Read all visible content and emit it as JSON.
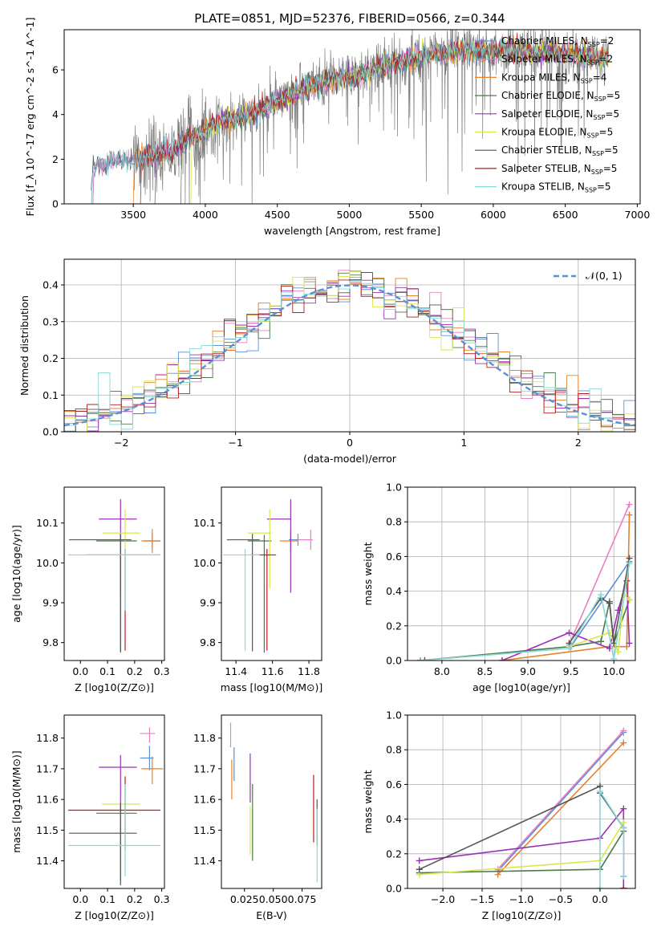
{
  "figure_title": "PLATE=0851, MJD=52376, FIBERID=0566, z=0.344",
  "colors": {
    "chabrier_miles": "#5b8fd6",
    "salpeter_miles": "#e87fc0",
    "kroupa_miles": "#e8822a",
    "chabrier_elodie": "#4a7a4a",
    "salpeter_elodie": "#9b30b8",
    "kroupa_elodie": "#d8e84a",
    "chabrier_stelib": "#555555",
    "salpeter_stelib": "#b81c1c",
    "kroupa_stelib": "#88d8d8",
    "normal_curve": "#5b8fd6",
    "data_spectrum": "#808080"
  },
  "chart_data": [
    {
      "id": "spectrum",
      "type": "line",
      "title": "PLATE=0851, MJD=52376, FIBERID=0566, z=0.344",
      "xlabel": "wavelength [Angstrom, rest frame]",
      "ylabel": "Flux [f_λ 10^-17 erg cm^-2 s^-1 A^-1]",
      "xlim": [
        3020,
        7020
      ],
      "ylim": [
        0,
        7.8
      ],
      "xticks": [
        "3500",
        "4000",
        "4500",
        "5000",
        "5500",
        "6000",
        "6500",
        "7000"
      ],
      "yticks": [
        "0",
        "2",
        "4",
        "6"
      ],
      "legend_position": "right",
      "legend": [
        {
          "label": "Chabrier MILES, N",
          "sub": "SSP",
          "suffix": "=2",
          "color_key": "chabrier_miles"
        },
        {
          "label": "Salpeter MILES, N",
          "sub": "SSP",
          "suffix": "=2",
          "color_key": "salpeter_miles"
        },
        {
          "label": "Kroupa MILES, N",
          "sub": "SSP",
          "suffix": "=4",
          "color_key": "kroupa_miles"
        },
        {
          "label": "Chabrier ELODIE, N",
          "sub": "SSP",
          "suffix": "=5",
          "color_key": "chabrier_elodie"
        },
        {
          "label": "Salpeter ELODIE, N",
          "sub": "SSP",
          "suffix": "=5",
          "color_key": "salpeter_elodie"
        },
        {
          "label": "Kroupa ELODIE, N",
          "sub": "SSP",
          "suffix": "=5",
          "color_key": "kroupa_elodie"
        },
        {
          "label": "Chabrier STELIB, N",
          "sub": "SSP",
          "suffix": "=5",
          "color_key": "chabrier_stelib"
        },
        {
          "label": "Salpeter STELIB, N",
          "sub": "SSP",
          "suffix": "=5",
          "color_key": "salpeter_stelib"
        },
        {
          "label": "Kroupa STELIB, N",
          "sub": "SSP",
          "suffix": "=5",
          "color_key": "kroupa_stelib"
        }
      ],
      "continuum": {
        "x": [
          3200,
          3220,
          3500,
          3700,
          3800,
          3950,
          4100,
          4300,
          4500,
          4700,
          4900,
          5100,
          5300,
          5500,
          5700,
          5900,
          6100,
          6300,
          6500,
          6700,
          6800
        ],
        "y": [
          0,
          1.7,
          2.0,
          2.3,
          2.6,
          3.1,
          3.7,
          4.0,
          4.6,
          5.2,
          5.6,
          5.8,
          6.3,
          6.6,
          6.8,
          6.9,
          6.9,
          6.8,
          6.7,
          6.6,
          6.5
        ]
      },
      "model_start_x": [
        3220,
        3220,
        3500,
        3830,
        3650,
        3900,
        3210,
        3550,
        3210
      ]
    },
    {
      "id": "residual_hist",
      "type": "histogram",
      "xlabel": "(data-model)/error",
      "ylabel": "Normed distribution",
      "xlim": [
        -2.5,
        2.5
      ],
      "ylim": [
        0,
        0.47
      ],
      "xticks": [
        "−2",
        "−1",
        "0",
        "1",
        "2"
      ],
      "yticks": [
        "0.0",
        "0.1",
        "0.2",
        "0.3",
        "0.4"
      ],
      "grid": true,
      "bin_width": 0.1,
      "reference_label": "𝒩(0, 1)",
      "legend_position": "top-right"
    },
    {
      "id": "age_vs_Z",
      "type": "errorbar",
      "xlabel": "Z [log10(Z/Z⊙)]",
      "ylabel": "age [log10(age/yr)]",
      "xlim": [
        -0.06,
        0.31
      ],
      "ylim": [
        9.755,
        10.19
      ],
      "xticks": [
        "0.0",
        "0.1",
        "0.2",
        "0.3"
      ],
      "yticks": [
        "9.8",
        "9.9",
        "10.0",
        "10.1"
      ],
      "points": [
        {
          "color_key": "chabrier_miles",
          "x": 0.265,
          "xerr": [
            0.03,
            0.03
          ],
          "y": 10.055,
          "yerr": [
            0.015,
            0.015
          ]
        },
        {
          "color_key": "salpeter_miles",
          "x": 0.265,
          "xerr": [
            0.025,
            0.025
          ],
          "y": 10.055,
          "yerr": [
            0.02,
            0.02
          ]
        },
        {
          "color_key": "kroupa_miles",
          "x": 0.265,
          "xerr": [
            0.04,
            0.03
          ],
          "y": 10.055,
          "yerr": [
            0.03,
            0.03
          ]
        },
        {
          "color_key": "chabrier_elodie",
          "x": 0.148,
          "xerr": [
            0.09,
            0.06
          ],
          "y": 10.055,
          "yerr": [
            0.28,
            0.015
          ]
        },
        {
          "color_key": "salpeter_elodie",
          "x": 0.148,
          "xerr": [
            0.08,
            0.06
          ],
          "y": 10.11,
          "yerr": [
            0.185,
            0.05
          ]
        },
        {
          "color_key": "kroupa_elodie",
          "x": 0.165,
          "xerr": [
            0.085,
            0.055
          ],
          "y": 10.075,
          "yerr": [
            0.15,
            0.06
          ]
        },
        {
          "color_key": "chabrier_stelib",
          "x": 0.148,
          "xerr": [
            0.19,
            0.04
          ],
          "y": 10.058,
          "yerr": [
            0.28,
            0.015
          ]
        },
        {
          "color_key": "salpeter_stelib",
          "x": 0.165,
          "xerr": [
            0.14,
            0.13
          ],
          "y": 10.02,
          "yerr": [
            0.24,
            0.015
          ]
        },
        {
          "color_key": "kroupa_stelib",
          "x": 0.165,
          "xerr": [
            0.21,
            0.13
          ],
          "y": 10.02,
          "yerr": [
            0.14,
            0.015
          ]
        }
      ]
    },
    {
      "id": "age_vs_mass",
      "type": "errorbar",
      "xlabel": "mass [log10(M/M⊙)]",
      "ylabel": "",
      "xlim": [
        11.32,
        11.87
      ],
      "ylim": [
        9.755,
        10.19
      ],
      "xticks": [
        "11.4",
        "11.6",
        "11.8"
      ],
      "yticks": [
        "9.8",
        "9.9",
        "10.0",
        "10.1"
      ],
      "points": [
        {
          "color_key": "chabrier_miles",
          "x": 11.74,
          "xerr": [
            0.05,
            0.02
          ],
          "y": 10.058,
          "yerr": [
            0.015,
            0.015
          ]
        },
        {
          "color_key": "salpeter_miles",
          "x": 11.81,
          "xerr": [
            0.07,
            0.01
          ],
          "y": 10.058,
          "yerr": [
            0.025,
            0.025
          ]
        },
        {
          "color_key": "kroupa_miles",
          "x": 11.7,
          "xerr": [
            0.06,
            0.04
          ],
          "y": 10.055,
          "yerr": [
            0.025,
            0.025
          ]
        },
        {
          "color_key": "chabrier_elodie",
          "x": 11.555,
          "xerr": [
            0.09,
            0.04
          ],
          "y": 10.055,
          "yerr": [
            0.28,
            0.015
          ]
        },
        {
          "color_key": "salpeter_elodie",
          "x": 11.7,
          "xerr": [
            0.13,
            0.0
          ],
          "y": 10.11,
          "yerr": [
            0.185,
            0.05
          ]
        },
        {
          "color_key": "kroupa_elodie",
          "x": 11.585,
          "xerr": [
            0.12,
            0.01
          ],
          "y": 10.075,
          "yerr": [
            0.14,
            0.06
          ]
        },
        {
          "color_key": "chabrier_stelib",
          "x": 11.49,
          "xerr": [
            0.14,
            0.04
          ],
          "y": 10.058,
          "yerr": [
            0.28,
            0.015
          ]
        },
        {
          "color_key": "salpeter_stelib",
          "x": 11.57,
          "xerr": [
            0.09,
            0.05
          ],
          "y": 10.02,
          "yerr": [
            0.24,
            0.015
          ]
        },
        {
          "color_key": "kroupa_stelib",
          "x": 11.45,
          "xerr": [
            0.12,
            0.08
          ],
          "y": 10.02,
          "yerr": [
            0.24,
            0.015
          ]
        }
      ]
    },
    {
      "id": "weight_vs_age",
      "type": "line",
      "xlabel": "age [log10(age/yr)]",
      "ylabel": "mass weight",
      "xlim": [
        7.6,
        10.25
      ],
      "ylim": [
        0,
        1.0
      ],
      "xticks": [
        "8.0",
        "8.5",
        "9.0",
        "9.5",
        "10.0"
      ],
      "yticks": [
        "0.0",
        "0.2",
        "0.4",
        "0.6",
        "0.8",
        "1.0"
      ],
      "grid": true,
      "series": [
        {
          "color_key": "chabrier_miles",
          "x": [
            9.5,
            10.18
          ],
          "y": [
            0.08,
            0.57
          ]
        },
        {
          "color_key": "salpeter_miles",
          "x": [
            9.48,
            10.18
          ],
          "y": [
            0.09,
            0.9
          ]
        },
        {
          "color_key": "kroupa_miles",
          "x": [
            8.7,
            9.95,
            10.15,
            10.18
          ],
          "y": [
            0.0,
            0.08,
            0.08,
            0.84
          ]
        },
        {
          "color_key": "chabrier_elodie",
          "x": [
            7.75,
            9.48,
            9.85,
            9.95,
            10.0,
            10.18
          ],
          "y": [
            0.0,
            0.08,
            0.11,
            0.34,
            0.1,
            0.35
          ]
        },
        {
          "color_key": "salpeter_elodie",
          "x": [
            8.7,
            9.48,
            9.95,
            10.05,
            10.15,
            10.18
          ],
          "y": [
            0.0,
            0.16,
            0.07,
            0.29,
            0.46,
            0.1
          ]
        },
        {
          "color_key": "kroupa_elodie",
          "x": [
            9.48,
            9.95,
            10.05,
            10.12,
            10.18
          ],
          "y": [
            0.08,
            0.16,
            0.05,
            0.38,
            0.35
          ]
        },
        {
          "color_key": "chabrier_stelib",
          "x": [
            9.48,
            9.85,
            9.95,
            10.0,
            10.18
          ],
          "y": [
            0.1,
            0.36,
            0.33,
            0.1,
            0.59
          ]
        },
        {
          "color_key": "salpeter_stelib",
          "x": [
            7.75,
            7.8
          ],
          "y": [
            0.0,
            0.0
          ]
        },
        {
          "color_key": "kroupa_stelib",
          "x": [
            7.75,
            9.48,
            9.85,
            10.0,
            10.18
          ],
          "y": [
            0.0,
            0.07,
            0.38,
            0.01,
            0.56
          ]
        }
      ]
    },
    {
      "id": "mass_vs_Z",
      "type": "errorbar",
      "xlabel": "Z [log10(Z/Z⊙)]",
      "ylabel": "mass [log10(M/M⊙)]",
      "xlim": [
        -0.06,
        0.31
      ],
      "ylim": [
        11.31,
        11.875
      ],
      "xticks": [
        "0.0",
        "0.1",
        "0.2",
        "0.3"
      ],
      "yticks": [
        "11.4",
        "11.5",
        "11.6",
        "11.7",
        "11.8"
      ],
      "points": [
        {
          "color_key": "chabrier_miles",
          "x": 0.255,
          "xerr": [
            0.035,
            0.015
          ],
          "y": 11.735,
          "yerr": [
            0.04,
            0.04
          ]
        },
        {
          "color_key": "salpeter_miles",
          "x": 0.255,
          "xerr": [
            0.035,
            0.02
          ],
          "y": 11.815,
          "yerr": [
            0.03,
            0.02
          ]
        },
        {
          "color_key": "kroupa_miles",
          "x": 0.265,
          "xerr": [
            0.04,
            0.04
          ],
          "y": 11.7,
          "yerr": [
            0.05,
            0.04
          ]
        },
        {
          "color_key": "chabrier_elodie",
          "x": 0.148,
          "xerr": [
            0.09,
            0.06
          ],
          "y": 11.555,
          "yerr": [
            0.22,
            0.03
          ]
        },
        {
          "color_key": "salpeter_elodie",
          "x": 0.148,
          "xerr": [
            0.08,
            0.06
          ],
          "y": 11.705,
          "yerr": [
            0.13,
            0.04
          ]
        },
        {
          "color_key": "kroupa_elodie",
          "x": 0.165,
          "xerr": [
            0.085,
            0.055
          ],
          "y": 11.585,
          "yerr": [
            0.18,
            0.06
          ]
        },
        {
          "color_key": "chabrier_stelib",
          "x": 0.148,
          "xerr": [
            0.19,
            0.06
          ],
          "y": 11.49,
          "yerr": [
            0.17,
            0.1
          ]
        },
        {
          "color_key": "salpeter_stelib",
          "x": 0.165,
          "xerr": [
            0.21,
            0.13
          ],
          "y": 11.565,
          "yerr": [
            0.13,
            0.11
          ]
        },
        {
          "color_key": "kroupa_stelib",
          "x": 0.165,
          "xerr": [
            0.21,
            0.13
          ],
          "y": 11.45,
          "yerr": [
            0.1,
            0.2
          ]
        }
      ]
    },
    {
      "id": "mass_vs_ebv",
      "type": "errorbar",
      "xlabel": "E(B-V)",
      "ylabel": "",
      "xlim": [
        0.005,
        0.092
      ],
      "ylim": [
        11.31,
        11.875
      ],
      "xticks": [
        "0.025",
        "0.050",
        "0.075"
      ],
      "yticks": [
        "11.4",
        "11.5",
        "11.6",
        "11.7",
        "11.8"
      ],
      "points": [
        {
          "color_key": "chabrier_miles",
          "x": 0.016,
          "xerr": [
            0,
            0
          ],
          "y": 11.72,
          "yerr": [
            0.06,
            0.05
          ]
        },
        {
          "color_key": "salpeter_miles",
          "x": 0.013,
          "xerr": [
            0,
            0
          ],
          "y": 11.81,
          "yerr": [
            0.04,
            0.04
          ]
        },
        {
          "color_key": "kroupa_miles",
          "x": 0.014,
          "xerr": [
            0,
            0
          ],
          "y": 11.66,
          "yerr": [
            0.06,
            0.07
          ]
        },
        {
          "color_key": "chabrier_elodie",
          "x": 0.032,
          "xerr": [
            0,
            0
          ],
          "y": 11.55,
          "yerr": [
            0.15,
            0.1
          ]
        },
        {
          "color_key": "salpeter_elodie",
          "x": 0.03,
          "xerr": [
            0,
            0
          ],
          "y": 11.69,
          "yerr": [
            0.1,
            0.06
          ]
        },
        {
          "color_key": "kroupa_elodie",
          "x": 0.03,
          "xerr": [
            0,
            0
          ],
          "y": 11.5,
          "yerr": [
            0.08,
            0.08
          ]
        },
        {
          "color_key": "chabrier_stelib",
          "x": 0.088,
          "xerr": [
            0,
            0
          ],
          "y": 11.5,
          "yerr": [
            0.05,
            0.1
          ]
        },
        {
          "color_key": "salpeter_stelib",
          "x": 0.085,
          "xerr": [
            0,
            0
          ],
          "y": 11.57,
          "yerr": [
            0.11,
            0.11
          ]
        },
        {
          "color_key": "kroupa_stelib",
          "x": 0.088,
          "xerr": [
            0,
            0
          ],
          "y": 11.45,
          "yerr": [
            0.12,
            0.12
          ]
        }
      ]
    },
    {
      "id": "weight_vs_Z",
      "type": "line",
      "xlabel": "Z [log10(Z/Z⊙)]",
      "ylabel": "mass weight",
      "xlim": [
        -2.45,
        0.45
      ],
      "ylim": [
        0,
        1.0
      ],
      "xticks": [
        "−2.0",
        "−1.5",
        "−1.0",
        "−0.5",
        "0.0"
      ],
      "yticks": [
        "0.0",
        "0.2",
        "0.4",
        "0.6",
        "0.8",
        "1.0"
      ],
      "grid": true,
      "series": [
        {
          "color_key": "chabrier_miles",
          "x": [
            -1.3,
            0.3
          ],
          "y": [
            0.1,
            0.9
          ]
        },
        {
          "color_key": "salpeter_miles",
          "x": [
            -1.3,
            0.3
          ],
          "y": [
            0.11,
            0.91
          ]
        },
        {
          "color_key": "kroupa_miles",
          "x": [
            -1.3,
            0.3
          ],
          "y": [
            0.08,
            0.84
          ]
        },
        {
          "color_key": "chabrier_elodie",
          "x": [
            -2.3,
            0.0,
            0.3
          ],
          "y": [
            0.09,
            0.11,
            0.33
          ]
        },
        {
          "color_key": "salpeter_elodie",
          "x": [
            -2.3,
            0.0,
            0.3,
            0.3
          ],
          "y": [
            0.16,
            0.29,
            0.46,
            0.0
          ]
        },
        {
          "color_key": "kroupa_elodie",
          "x": [
            -2.3,
            0.0,
            0.3
          ],
          "y": [
            0.08,
            0.16,
            0.38
          ]
        },
        {
          "color_key": "chabrier_stelib",
          "x": [
            -2.3,
            0.0,
            0.0,
            0.3,
            0.3
          ],
          "y": [
            0.11,
            0.59,
            0.55,
            0.35,
            0.07
          ]
        },
        {
          "color_key": "salpeter_stelib",
          "x": [
            0.3,
            0.3
          ],
          "y": [
            0.0,
            0.0
          ]
        },
        {
          "color_key": "kroupa_stelib",
          "x": [
            0.0,
            0.0,
            0.3,
            0.3
          ],
          "y": [
            0.0,
            0.56,
            0.35,
            0.07
          ]
        }
      ]
    }
  ]
}
